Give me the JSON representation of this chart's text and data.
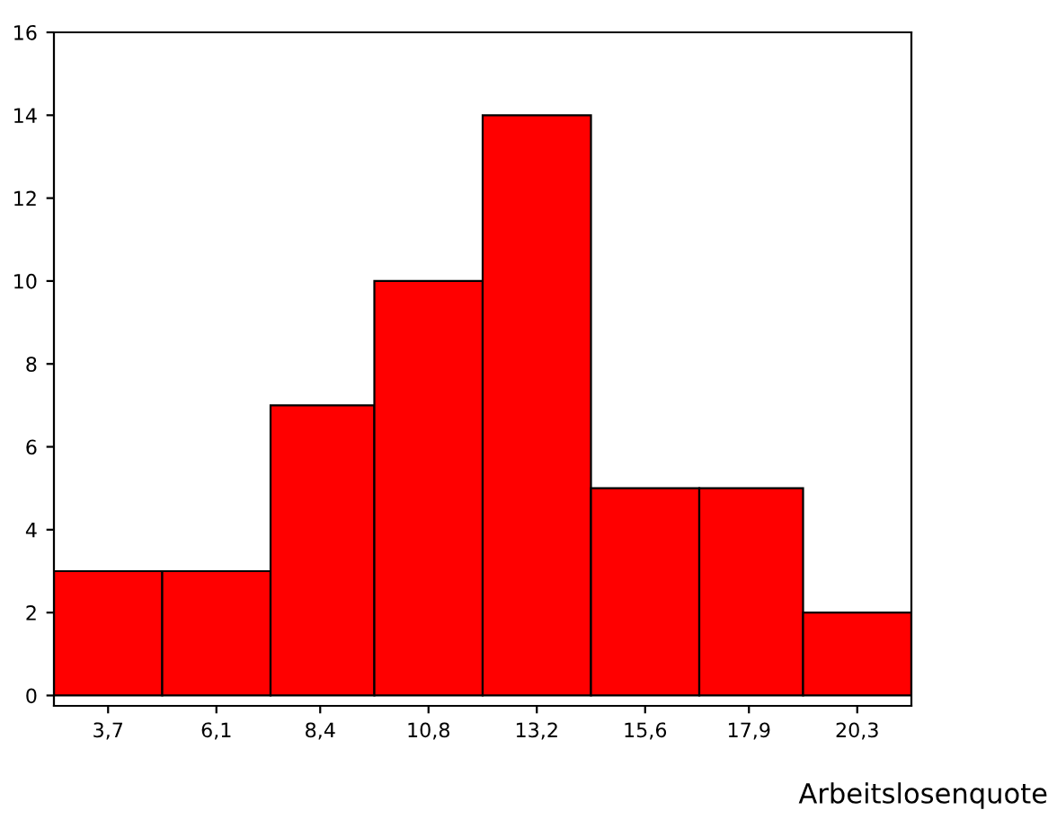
{
  "chart_data": {
    "type": "histogram",
    "xlabel": "Arbeitslosenquote",
    "bins": [
      2.5,
      4.9,
      7.3,
      9.6,
      12.0,
      14.4,
      16.8,
      19.1,
      21.5
    ],
    "values": [
      3,
      3,
      7,
      10,
      14,
      5,
      5,
      2
    ],
    "color": "#ff0000",
    "xlim": [
      2.5,
      21.5
    ],
    "xticks": [
      {
        "value": 3.7,
        "label": "3,7"
      },
      {
        "value": 6.1,
        "label": "6,1"
      },
      {
        "value": 8.4,
        "label": "8,4"
      },
      {
        "value": 10.8,
        "label": "10,8"
      },
      {
        "value": 13.2,
        "label": "13,2"
      },
      {
        "value": 15.6,
        "label": "15,6"
      },
      {
        "value": 17.9,
        "label": "17,9"
      },
      {
        "value": 20.3,
        "label": "20,3"
      }
    ],
    "ylim": [
      -0.25,
      16
    ],
    "yticks": [
      0,
      2,
      4,
      6,
      8,
      10,
      12,
      14,
      16
    ],
    "grid": false
  }
}
